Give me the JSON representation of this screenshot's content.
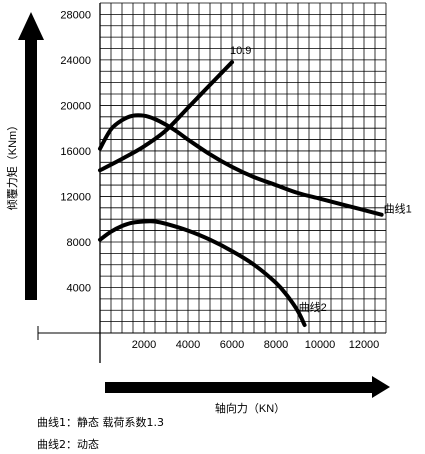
{
  "chart_data": {
    "type": "line",
    "xlabel": "轴向力（KN）",
    "ylabel": "倾覆力矩（KNm）",
    "xlim": [
      0,
      13000
    ],
    "ylim": [
      0,
      29000
    ],
    "xticks": [
      2000,
      4000,
      6000,
      8000,
      10000,
      12000
    ],
    "yticks": [
      4000,
      8000,
      12000,
      16000,
      20000,
      24000,
      28000
    ],
    "grid": true,
    "series": [
      {
        "name": "曲线1",
        "x": [
          0,
          500,
          1000,
          1500,
          2000,
          2500,
          3000,
          3500,
          4000,
          5000,
          6000,
          7000,
          8000,
          9000,
          10000,
          11000,
          12000,
          12800
        ],
        "y": [
          16200,
          17900,
          18700,
          19100,
          19100,
          18800,
          18300,
          17700,
          17000,
          15700,
          14600,
          13700,
          13000,
          12300,
          11800,
          11300,
          10800,
          10400
        ]
      },
      {
        "name": "曲线2",
        "x": [
          0,
          500,
          1000,
          1500,
          2000,
          2500,
          3000,
          4000,
          5000,
          6000,
          7000,
          8000,
          8500,
          9000,
          9300
        ],
        "y": [
          8200,
          8900,
          9400,
          9700,
          9800,
          9800,
          9600,
          9000,
          8200,
          7200,
          6000,
          4400,
          3300,
          1900,
          700
        ]
      },
      {
        "name": "10.9",
        "x": [
          0,
          1000,
          2000,
          3000,
          4000,
          5000,
          6000
        ],
        "y": [
          14300,
          15300,
          16400,
          17800,
          19800,
          21800,
          23800
        ]
      }
    ],
    "legend": [
      "曲线1：静态 载荷系数1.3",
      "曲线2：动态"
    ]
  }
}
